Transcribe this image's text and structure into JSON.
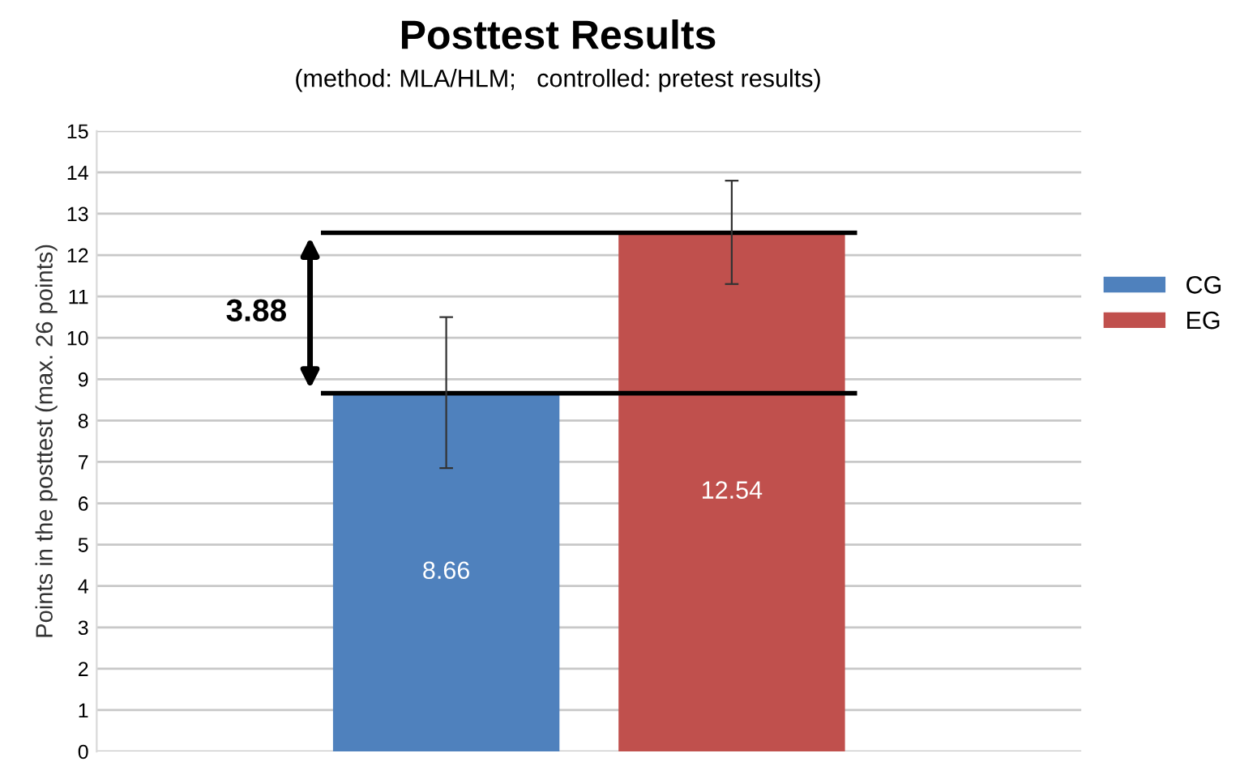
{
  "chart_data": {
    "type": "bar",
    "title": "Posttest Results",
    "subtitle": "(method: MLA/HLM;   controlled: pretest results)",
    "ylabel": "Points in the posttest (max. 26 points)",
    "categories": [
      null
    ],
    "series": [
      {
        "name": "CG",
        "color": "#4f81bd",
        "values": [
          8.66
        ],
        "errors": [
          [
            6.85,
            10.5
          ]
        ]
      },
      {
        "name": "EG",
        "color": "#c0504d",
        "values": [
          12.54
        ],
        "errors": [
          [
            11.3,
            13.8
          ]
        ]
      }
    ],
    "data_labels": true,
    "ref_lines": [
      {
        "axis": "y",
        "value": 12.54,
        "color": "#000000"
      },
      {
        "axis": "y",
        "value": 8.66,
        "color": "#000000"
      }
    ],
    "annotations": [
      "3.88"
    ],
    "ylim": [
      0,
      15
    ],
    "yticks": [
      0,
      1,
      2,
      3,
      4,
      5,
      6,
      7,
      8,
      9,
      10,
      11,
      12,
      13,
      14,
      15
    ],
    "grid": "y",
    "legend": "right"
  }
}
